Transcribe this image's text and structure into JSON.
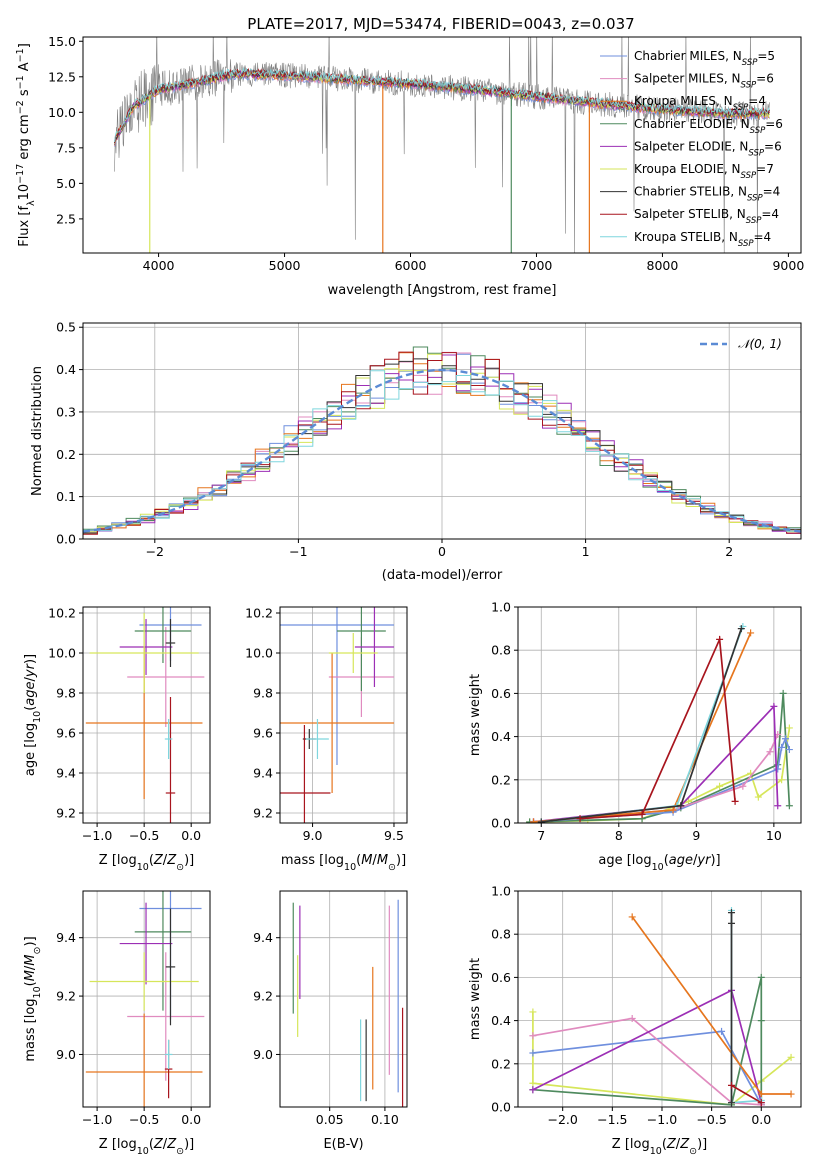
{
  "figure": {
    "title": "PLATE=2017, MJD=53474, FIBERID=0043, z=0.037"
  },
  "colors": {
    "chabrier_miles": "#6f8fde",
    "salpeter_miles": "#e08bbf",
    "kroupa_miles": "#e6761e",
    "chabrier_elodie": "#4e8a5e",
    "salpeter_elodie": "#9c2fb5",
    "kroupa_elodie": "#d6e65a",
    "chabrier_stelib": "#333333",
    "salpeter_stelib": "#a8151e",
    "kroupa_stelib": "#7fd6de",
    "data_gray": "#808080",
    "normal_curve": "#5b8bd5",
    "grid": "#b0b0b0"
  },
  "legend_models": [
    {
      "key": "chabrier_miles",
      "label": "Chabrier MILES, N",
      "sub": "SSP",
      "suffix": "=5"
    },
    {
      "key": "salpeter_miles",
      "label": "Salpeter MILES, N",
      "sub": "SSP",
      "suffix": "=6"
    },
    {
      "key": "kroupa_miles",
      "label": "Kroupa MILES, N",
      "sub": "SSP",
      "suffix": "=4"
    },
    {
      "key": "chabrier_elodie",
      "label": "Chabrier ELODIE, N",
      "sub": "SSP",
      "suffix": "=6"
    },
    {
      "key": "salpeter_elodie",
      "label": "Salpeter ELODIE, N",
      "sub": "SSP",
      "suffix": "=6"
    },
    {
      "key": "kroupa_elodie",
      "label": "Kroupa ELODIE, N",
      "sub": "SSP",
      "suffix": "=7"
    },
    {
      "key": "chabrier_stelib",
      "label": "Chabrier STELIB, N",
      "sub": "SSP",
      "suffix": "=4"
    },
    {
      "key": "salpeter_stelib",
      "label": "Salpeter STELIB, N",
      "sub": "SSP",
      "suffix": "=4"
    },
    {
      "key": "kroupa_stelib",
      "label": "Kroupa STELIB, N",
      "sub": "SSP",
      "suffix": "=4"
    }
  ],
  "chart_data": [
    {
      "id": "spectrum",
      "type": "line",
      "xlabel": "wavelength [Angstrom, rest frame]",
      "ylabel_parts": [
        "Flux [f",
        "λ",
        "10",
        "−17",
        " erg cm",
        "−2",
        " s",
        "−1",
        " A",
        "−1",
        "]"
      ],
      "xlim": [
        3400,
        9100
      ],
      "ylim": [
        0.1,
        15.3
      ],
      "xticks": [
        4000,
        5000,
        6000,
        7000,
        8000,
        9000
      ],
      "yticks": [
        2.5,
        5.0,
        7.5,
        10.0,
        12.5,
        15.0
      ],
      "ytick_labels": [
        "2.5",
        "5.0",
        "7.5",
        "10.0",
        "12.5",
        "15.0"
      ],
      "continuum": [
        [
          3650,
          8.0
        ],
        [
          3800,
          10.4
        ],
        [
          4000,
          11.6
        ],
        [
          4300,
          12.1
        ],
        [
          4600,
          12.7
        ],
        [
          5000,
          12.6
        ],
        [
          5500,
          12.3
        ],
        [
          6000,
          12.0
        ],
        [
          6500,
          11.6
        ],
        [
          7000,
          11.1
        ],
        [
          7500,
          10.6
        ],
        [
          8000,
          10.2
        ],
        [
          8500,
          9.9
        ],
        [
          8850,
          9.9
        ]
      ],
      "noise_amplitude": 1.0,
      "dips": [
        {
          "model": "kroupa_miles",
          "x": 5780,
          "to": 0.1
        },
        {
          "model": "chabrier_elodie",
          "x": 6800,
          "to": 0.1
        },
        {
          "model": "kroupa_miles",
          "x": 7420,
          "to": 0.1
        },
        {
          "model": "kroupa_elodie",
          "x": 3930,
          "to": 0.1
        }
      ]
    },
    {
      "id": "residuals",
      "type": "histogram",
      "xlabel": "(data-model)/error",
      "ylabel": "Normed distribution",
      "xlim": [
        -2.5,
        2.5
      ],
      "ylim": [
        0,
        0.51
      ],
      "xticks": [
        -2,
        -1,
        0,
        1,
        2
      ],
      "xtick_labels": [
        "−2",
        "−1",
        "0",
        "1",
        "2"
      ],
      "yticks": [
        0,
        0.1,
        0.2,
        0.3,
        0.4,
        0.5
      ],
      "ytick_labels": [
        "0.0",
        "0.1",
        "0.2",
        "0.3",
        "0.4",
        "0.5"
      ],
      "bin_width": 0.1,
      "normal_label": "𝒩(0, 1)"
    },
    {
      "id": "age_vs_Z",
      "type": "errorbar",
      "xlabel": "Z [log10(Z/Z⊙)]",
      "ylabel": "age [log10(age/yr)]",
      "xlim": [
        -1.15,
        0.2
      ],
      "ylim": [
        9.15,
        10.23
      ],
      "xticks": [
        -1.0,
        -0.5,
        0.0
      ],
      "xtick_labels": [
        "−1.0",
        "−0.5",
        "0.0"
      ],
      "yticks": [
        9.2,
        9.4,
        9.6,
        9.8,
        10.0,
        10.2
      ],
      "ytick_labels": [
        "9.2",
        "9.4",
        "9.6",
        "9.8",
        "10.0",
        "10.2"
      ],
      "points": [
        {
          "model": "chabrier_miles",
          "x": -0.22,
          "y": 10.14,
          "xerr": 0.33,
          "yerr": 0.18
        },
        {
          "model": "salpeter_miles",
          "x": -0.27,
          "y": 9.88,
          "xerr": 0.41,
          "yerr": 0.25
        },
        {
          "model": "kroupa_miles",
          "x": -0.5,
          "y": 9.65,
          "xerr": 0.62,
          "yerr": 0.38
        },
        {
          "model": "chabrier_elodie",
          "x": -0.3,
          "y": 10.11,
          "xerr": 0.3,
          "yerr": 0.16
        },
        {
          "model": "salpeter_elodie",
          "x": -0.48,
          "y": 10.03,
          "xerr": 0.28,
          "yerr": 0.14
        },
        {
          "model": "kroupa_elodie",
          "x": -0.5,
          "y": 10.0,
          "xerr": 0.58,
          "yerr": 0.2
        },
        {
          "model": "chabrier_stelib",
          "x": -0.22,
          "y": 10.05,
          "xerr": 0.05,
          "yerr": 0.12
        },
        {
          "model": "salpeter_stelib",
          "x": -0.22,
          "y": 9.3,
          "xerr": 0.05,
          "yerr": 0.48
        },
        {
          "model": "kroupa_stelib",
          "x": -0.24,
          "y": 9.57,
          "xerr": 0.04,
          "yerr": 0.1
        }
      ]
    },
    {
      "id": "age_vs_mass",
      "type": "errorbar",
      "xlabel": "mass [log10(M/M⊙)]",
      "ylabel": "",
      "xlim": [
        8.8,
        9.58
      ],
      "ylim": [
        9.15,
        10.23
      ],
      "xticks": [
        9.0,
        9.5
      ],
      "xtick_labels": [
        "9.0",
        "9.5"
      ],
      "yticks": [
        9.2,
        9.4,
        9.6,
        9.8,
        10.0,
        10.2
      ],
      "ytick_labels": [
        "9.2",
        "9.4",
        "9.6",
        "9.8",
        "10.0",
        "10.2"
      ],
      "points": [
        {
          "model": "chabrier_miles",
          "x": 9.15,
          "y": 10.14,
          "xerr": 0.35,
          "yerr": 0.7
        },
        {
          "model": "salpeter_miles",
          "x": 9.3,
          "y": 9.88,
          "xerr": 0.2,
          "yerr": 0.2
        },
        {
          "model": "kroupa_miles",
          "x": 9.12,
          "y": 9.65,
          "xerr": 0.38,
          "yerr": 0.35
        },
        {
          "model": "chabrier_elodie",
          "x": 9.3,
          "y": 10.11,
          "xerr": 0.15,
          "yerr": 0.3
        },
        {
          "model": "salpeter_elodie",
          "x": 9.38,
          "y": 10.03,
          "xerr": 0.12,
          "yerr": 0.2
        },
        {
          "model": "kroupa_elodie",
          "x": 9.25,
          "y": 10.0,
          "xerr": 0.15,
          "yerr": 0.1
        },
        {
          "model": "chabrier_stelib",
          "x": 8.98,
          "y": 9.57,
          "xerr": 0.04,
          "yerr": 0.05
        },
        {
          "model": "salpeter_stelib",
          "x": 8.95,
          "y": 9.3,
          "xerr": 0.16,
          "yerr": 0.34
        },
        {
          "model": "kroupa_stelib",
          "x": 9.03,
          "y": 9.57,
          "xerr": 0.07,
          "yerr": 0.1
        }
      ]
    },
    {
      "id": "massweight_vs_age",
      "type": "line",
      "xlabel": "age [log10(age/yr)]",
      "ylabel": "mass weight",
      "xlim": [
        6.7,
        10.35
      ],
      "ylim": [
        0,
        1.0
      ],
      "xticks": [
        7,
        8,
        9,
        10
      ],
      "xtick_labels": [
        "7",
        "8",
        "9",
        "10"
      ],
      "yticks": [
        0,
        0.2,
        0.4,
        0.6,
        0.8,
        1.0
      ],
      "ytick_labels": [
        "0.0",
        "0.2",
        "0.4",
        "0.6",
        "0.8",
        "1.0"
      ],
      "series": [
        {
          "model": "kroupa_elodie",
          "points": [
            [
              6.85,
              0.005
            ],
            [
              7.6,
              0.01
            ],
            [
              8.3,
              0.02
            ],
            [
              8.9,
              0.1
            ],
            [
              9.3,
              0.17
            ],
            [
              9.7,
              0.23
            ],
            [
              9.8,
              0.12
            ],
            [
              10.1,
              0.2
            ],
            [
              10.2,
              0.44
            ]
          ]
        },
        {
          "model": "chabrier_elodie",
          "points": [
            [
              6.85,
              0.005
            ],
            [
              8.3,
              0.02
            ],
            [
              8.8,
              0.07
            ],
            [
              10.05,
              0.27
            ],
            [
              10.12,
              0.6
            ],
            [
              10.2,
              0.08
            ]
          ]
        },
        {
          "model": "chabrier_miles",
          "points": [
            [
              6.9,
              0.005
            ],
            [
              8.7,
              0.05
            ],
            [
              10.05,
              0.25
            ],
            [
              10.1,
              0.35
            ],
            [
              10.15,
              0.39
            ],
            [
              10.2,
              0.34
            ]
          ]
        },
        {
          "model": "salpeter_miles",
          "points": [
            [
              6.9,
              0.005
            ],
            [
              8.7,
              0.06
            ],
            [
              9.6,
              0.17
            ],
            [
              9.95,
              0.33
            ],
            [
              10.05,
              0.41
            ]
          ]
        },
        {
          "model": "salpeter_elodie",
          "points": [
            [
              6.9,
              0.005
            ],
            [
              8.8,
              0.08
            ],
            [
              10.0,
              0.54
            ],
            [
              10.05,
              0.08
            ]
          ]
        },
        {
          "model": "kroupa_miles",
          "points": [
            [
              6.9,
              0.005
            ],
            [
              8.7,
              0.06
            ],
            [
              9.7,
              0.88
            ]
          ]
        },
        {
          "model": "kroupa_stelib",
          "points": [
            [
              7.0,
              0.005
            ],
            [
              8.75,
              0.08
            ],
            [
              9.6,
              0.91
            ]
          ]
        },
        {
          "model": "chabrier_stelib",
          "points": [
            [
              7.0,
              0.005
            ],
            [
              8.8,
              0.08
            ],
            [
              9.58,
              0.9
            ]
          ]
        },
        {
          "model": "salpeter_stelib",
          "points": [
            [
              7.5,
              0.02
            ],
            [
              8.3,
              0.04
            ],
            [
              9.3,
              0.85
            ],
            [
              9.5,
              0.1
            ]
          ]
        }
      ]
    },
    {
      "id": "mass_vs_Z",
      "type": "errorbar",
      "xlabel": "Z [log10(Z/Z⊙)]",
      "ylabel": "mass [log10(M/M⊙)]",
      "xlim": [
        -1.15,
        0.2
      ],
      "ylim": [
        8.82,
        9.56
      ],
      "xticks": [
        -1.0,
        -0.5,
        0.0
      ],
      "xtick_labels": [
        "−1.0",
        "−0.5",
        "0.0"
      ],
      "yticks": [
        9.0,
        9.2,
        9.4
      ],
      "ytick_labels": [
        "9.0",
        "9.2",
        "9.4"
      ],
      "points": [
        {
          "model": "chabrier_miles",
          "x": -0.22,
          "y": 9.5,
          "xerr": 0.33,
          "yerr": 0.38
        },
        {
          "model": "salpeter_miles",
          "x": -0.27,
          "y": 9.13,
          "xerr": 0.41,
          "yerr": 0.22
        },
        {
          "model": "kroupa_miles",
          "x": -0.5,
          "y": 8.94,
          "xerr": 0.62,
          "yerr": 0.2
        },
        {
          "model": "chabrier_elodie",
          "x": -0.3,
          "y": 9.42,
          "xerr": 0.3,
          "yerr": 0.27
        },
        {
          "model": "salpeter_elodie",
          "x": -0.48,
          "y": 9.38,
          "xerr": 0.28,
          "yerr": 0.14
        },
        {
          "model": "kroupa_elodie",
          "x": -0.5,
          "y": 9.25,
          "xerr": 0.58,
          "yerr": 0.1
        },
        {
          "model": "chabrier_stelib",
          "x": -0.22,
          "y": 9.3,
          "xerr": 0.05,
          "yerr": 0.2
        },
        {
          "model": "salpeter_stelib",
          "x": -0.24,
          "y": 8.95,
          "xerr": 0.04,
          "yerr": 0.1
        },
        {
          "model": "kroupa_stelib",
          "x": -0.24,
          "y": 9.0,
          "xerr": 0.04,
          "yerr": 0.05
        }
      ]
    },
    {
      "id": "mass_vs_EBV",
      "type": "errorbar",
      "xlabel": "E(B-V)",
      "ylabel": "",
      "xlim": [
        0.005,
        0.12
      ],
      "ylim": [
        8.82,
        9.56
      ],
      "xticks": [
        0.05,
        0.1
      ],
      "xtick_labels": [
        "0.05",
        "0.10"
      ],
      "yticks": [
        9.0,
        9.2,
        9.4
      ],
      "ytick_labels": [
        "9.0",
        "9.2",
        "9.4"
      ],
      "points": [
        {
          "model": "chabrier_miles",
          "x": 0.112,
          "y": 9.2,
          "xerr": 0,
          "yerr": 0.33
        },
        {
          "model": "salpeter_miles",
          "x": 0.104,
          "y": 9.22,
          "xerr": 0,
          "yerr": 0.29
        },
        {
          "model": "kroupa_miles",
          "x": 0.089,
          "y": 9.09,
          "xerr": 0,
          "yerr": 0.21
        },
        {
          "model": "chabrier_elodie",
          "x": 0.017,
          "y": 9.33,
          "xerr": 0,
          "yerr": 0.19
        },
        {
          "model": "salpeter_elodie",
          "x": 0.023,
          "y": 9.35,
          "xerr": 0,
          "yerr": 0.16
        },
        {
          "model": "kroupa_elodie",
          "x": 0.021,
          "y": 9.2,
          "xerr": 0,
          "yerr": 0.14
        },
        {
          "model": "chabrier_stelib",
          "x": 0.083,
          "y": 8.98,
          "xerr": 0,
          "yerr": 0.14
        },
        {
          "model": "salpeter_stelib",
          "x": 0.116,
          "y": 8.98,
          "xerr": 0,
          "yerr": 0.18
        },
        {
          "model": "kroupa_stelib",
          "x": 0.078,
          "y": 8.98,
          "xerr": 0,
          "yerr": 0.14
        }
      ]
    },
    {
      "id": "massweight_vs_Z",
      "type": "line",
      "xlabel": "Z [log10(Z/Z⊙)]",
      "ylabel": "mass weight",
      "xlim": [
        -2.45,
        0.4
      ],
      "ylim": [
        0,
        1.0
      ],
      "xticks": [
        -2.0,
        -1.5,
        -1.0,
        -0.5,
        0.0
      ],
      "xtick_labels": [
        "−2.0",
        "−1.5",
        "−1.0",
        "−0.5",
        "0.0"
      ],
      "yticks": [
        0,
        0.2,
        0.4,
        0.6,
        0.8,
        1.0
      ],
      "ytick_labels": [
        "0.0",
        "0.2",
        "0.4",
        "0.6",
        "0.8",
        "1.0"
      ],
      "series": [
        {
          "model": "kroupa_elodie",
          "points": [
            [
              -2.3,
              0.44
            ],
            [
              -2.3,
              0.11
            ],
            [
              -0.3,
              0.01
            ],
            [
              0.0,
              0.12
            ],
            [
              0.3,
              0.23
            ]
          ]
        },
        {
          "model": "chabrier_elodie",
          "points": [
            [
              -2.3,
              0.08
            ],
            [
              -0.3,
              0.01
            ],
            [
              0.0,
              0.6
            ],
            [
              0.0,
              0.4
            ],
            [
              0.0,
              0.01
            ]
          ]
        },
        {
          "model": "chabrier_miles",
          "points": [
            [
              -2.3,
              0.25
            ],
            [
              -0.4,
              0.35
            ],
            [
              0.0,
              0.01
            ]
          ]
        },
        {
          "model": "salpeter_miles",
          "points": [
            [
              -2.3,
              0.33
            ],
            [
              -1.3,
              0.41
            ],
            [
              -0.3,
              0.02
            ],
            [
              0.0,
              0.01
            ]
          ]
        },
        {
          "model": "salpeter_elodie",
          "points": [
            [
              -2.3,
              0.08
            ],
            [
              -0.3,
              0.54
            ],
            [
              0.0,
              0.02
            ]
          ]
        },
        {
          "model": "kroupa_miles",
          "points": [
            [
              -1.3,
              0.88
            ],
            [
              0.0,
              0.06
            ],
            [
              0.3,
              0.06
            ]
          ]
        },
        {
          "model": "kroupa_stelib",
          "points": [
            [
              -0.3,
              0.91
            ],
            [
              -0.3,
              0.02
            ],
            [
              0.0,
              0.03
            ]
          ]
        },
        {
          "model": "chabrier_stelib",
          "points": [
            [
              -0.3,
              0.9
            ],
            [
              -0.3,
              0.85
            ],
            [
              -0.3,
              0.02
            ]
          ]
        },
        {
          "model": "salpeter_stelib",
          "points": [
            [
              -0.3,
              0.1
            ],
            [
              0.0,
              0.02
            ]
          ]
        }
      ]
    }
  ]
}
